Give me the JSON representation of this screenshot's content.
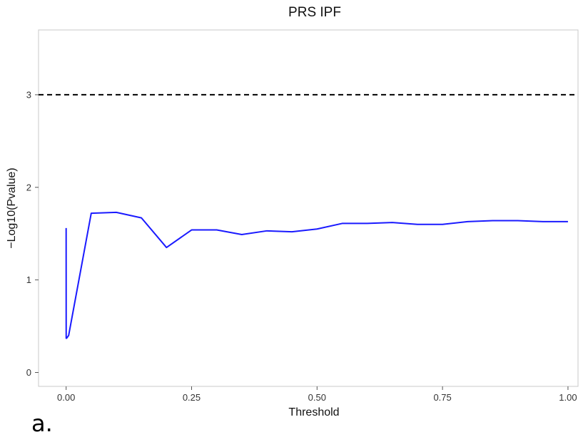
{
  "chart_data": {
    "type": "line",
    "title": "PRS IPF",
    "xlabel": "Threshold",
    "ylabel": "−Log10(Pvalue)",
    "xlim": [
      -0.055,
      1.02
    ],
    "ylim": [
      -0.15,
      3.7
    ],
    "xticks": [
      0.0,
      0.25,
      0.5,
      0.75,
      1.0
    ],
    "xtick_labels": [
      "0.00",
      "0.25",
      "0.50",
      "0.75",
      "1.00"
    ],
    "yticks": [
      0,
      1,
      2,
      3
    ],
    "ytick_labels": [
      "0",
      "1",
      "2",
      "3"
    ],
    "grid": false,
    "series": [
      {
        "color": "#1a1aff",
        "x": [
          0.0,
          0.0001,
          0.001,
          0.005,
          0.05,
          0.1,
          0.15,
          0.2,
          0.25,
          0.3,
          0.35,
          0.4,
          0.45,
          0.5,
          0.55,
          0.6,
          0.65,
          0.7,
          0.75,
          0.8,
          0.85,
          0.9,
          0.95,
          1.0
        ],
        "y": [
          1.56,
          0.37,
          0.37,
          0.4,
          1.72,
          1.73,
          1.67,
          1.35,
          1.54,
          1.54,
          1.49,
          1.53,
          1.52,
          1.55,
          1.61,
          1.61,
          1.62,
          1.6,
          1.6,
          1.63,
          1.64,
          1.64,
          1.63,
          1.63
        ]
      }
    ],
    "reference_line": {
      "y": 3,
      "style": "dashed",
      "color": "#000000"
    }
  },
  "panel_label": "a."
}
